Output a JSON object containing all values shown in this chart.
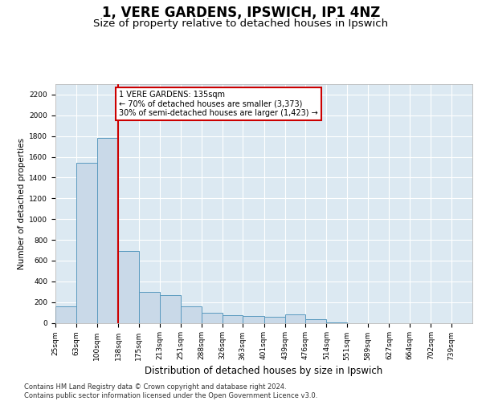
{
  "title": "1, VERE GARDENS, IPSWICH, IP1 4NZ",
  "subtitle": "Size of property relative to detached houses in Ipswich",
  "xlabel": "Distribution of detached houses by size in Ipswich",
  "ylabel": "Number of detached properties",
  "bar_edges": [
    25,
    63,
    100,
    138,
    175,
    213,
    251,
    288,
    326,
    363,
    401,
    439,
    476,
    514,
    551,
    589,
    627,
    664,
    702,
    739,
    777
  ],
  "bar_heights": [
    155,
    1540,
    1780,
    690,
    300,
    270,
    155,
    95,
    70,
    65,
    55,
    80,
    35,
    5,
    0,
    0,
    0,
    0,
    0,
    0
  ],
  "bar_color": "#c9d9e8",
  "bar_edge_color": "#5a9abf",
  "vline_x": 138,
  "vline_color": "#cc0000",
  "annotation_line1": "1 VERE GARDENS: 135sqm",
  "annotation_line2": "← 70% of detached houses are smaller (3,373)",
  "annotation_line3": "30% of semi-detached houses are larger (1,423) →",
  "annotation_box_facecolor": "#ffffff",
  "annotation_border_color": "#cc0000",
  "ylim": [
    0,
    2300
  ],
  "yticks": [
    0,
    200,
    400,
    600,
    800,
    1000,
    1200,
    1400,
    1600,
    1800,
    2000,
    2200
  ],
  "bg_color": "#dce9f2",
  "footer_line1": "Contains HM Land Registry data © Crown copyright and database right 2024.",
  "footer_line2": "Contains public sector information licensed under the Open Government Licence v3.0.",
  "title_fontsize": 12,
  "subtitle_fontsize": 9.5,
  "ylabel_fontsize": 7.5,
  "xlabel_fontsize": 8.5,
  "tick_fontsize": 6.5,
  "footer_fontsize": 6,
  "ann_fontsize": 7
}
